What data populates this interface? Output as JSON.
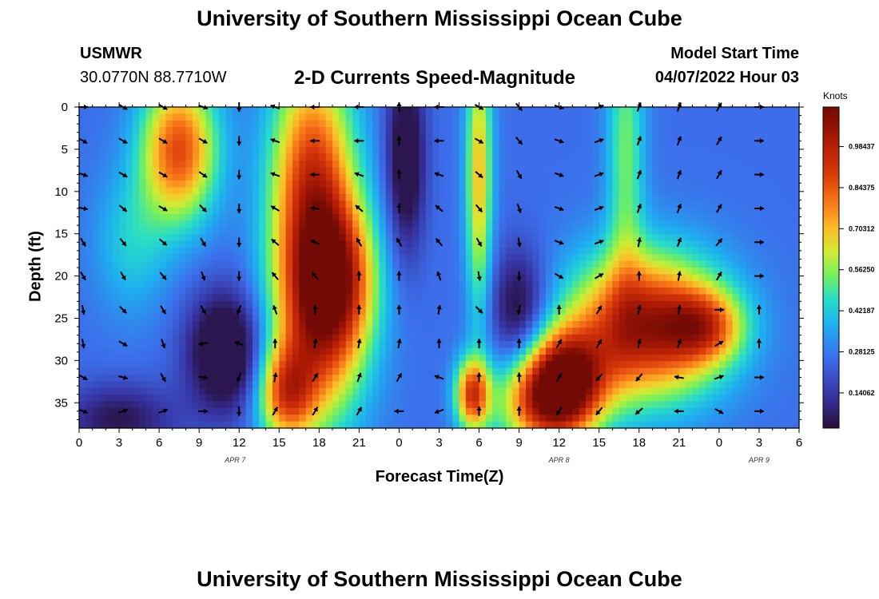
{
  "header": {
    "title": "University of Southern Mississippi Ocean Cube",
    "station": "USMWR",
    "coords": "30.0770N  88.7710W",
    "subtitle": "2-D Currents Speed-Magnitude",
    "model_label": "Model Start Time",
    "model_time": "04/07/2022 Hour 03"
  },
  "footer": {
    "title": "University of Southern Mississippi Ocean Cube"
  },
  "chart_data": {
    "type": "heatmap",
    "title": "2-D Currents Speed-Magnitude",
    "xlabel": "Forecast Time(Z)",
    "ylabel": "Depth (ft)",
    "colorbar_label": "Knots",
    "colorbar_ticks": [
      "0.14062",
      "0.28125",
      "0.42187",
      "0.56250",
      "0.70312",
      "0.84375",
      "0.98437"
    ],
    "colorbar_range": [
      0.02,
      1.12
    ],
    "x_tick_labels": [
      "0",
      "3",
      "6",
      "9",
      "12",
      "15",
      "18",
      "21",
      "0",
      "3",
      "6",
      "9",
      "12",
      "15",
      "18",
      "21",
      "0",
      "3",
      "6"
    ],
    "x_range_hours": [
      0,
      54
    ],
    "date_labels": [
      {
        "text": "APR 7",
        "hour": 11.7
      },
      {
        "text": "APR 8",
        "hour": 36
      },
      {
        "text": "APR 9",
        "hour": 51
      }
    ],
    "y_ticks": [
      0,
      5,
      10,
      15,
      20,
      25,
      30,
      35
    ],
    "y_range": [
      0,
      38
    ],
    "hotspots": [
      {
        "t": 7.5,
        "d": 5,
        "st": 2.0,
        "sd": 6,
        "v": 0.55
      },
      {
        "t": 17.5,
        "d": 8,
        "st": 2.2,
        "sd": 10,
        "v": 0.55
      },
      {
        "t": 18,
        "d": 25,
        "st": 2.5,
        "sd": 9,
        "v": 0.55
      },
      {
        "t": 15.5,
        "d": 34,
        "st": 1.5,
        "sd": 4,
        "v": 0.45
      },
      {
        "t": 19.5,
        "d": 20,
        "st": 2.0,
        "sd": 6,
        "v": 0.35
      },
      {
        "t": 29.5,
        "d": 34,
        "st": 0.9,
        "sd": 3,
        "v": 0.55
      },
      {
        "t": 35,
        "d": 35,
        "st": 2.5,
        "sd": 4,
        "v": 0.55
      },
      {
        "t": 42.5,
        "d": 26,
        "st": 4.0,
        "sd": 6,
        "v": 0.7
      },
      {
        "t": 47,
        "d": 26,
        "st": 2.0,
        "sd": 3,
        "v": 0.35
      },
      {
        "t": 36.5,
        "d": 32,
        "st": 2.0,
        "sd": 4,
        "v": 0.55
      },
      {
        "t": 30,
        "d": 8,
        "st": 0.7,
        "sd": 12,
        "v": 0.4
      },
      {
        "t": 41,
        "d": 5,
        "st": 1.0,
        "sd": 12,
        "v": 0.25
      },
      {
        "t": 4,
        "d": 16,
        "st": 2.0,
        "sd": 6,
        "v": 0.15
      }
    ],
    "lowspots": [
      {
        "t": 11,
        "d": 29,
        "st": 2.0,
        "sd": 5,
        "v": 0.35
      },
      {
        "t": 24.5,
        "d": 6,
        "st": 1.0,
        "sd": 8,
        "v": 0.3
      },
      {
        "t": 33,
        "d": 24,
        "st": 1.5,
        "sd": 5,
        "v": 0.25
      },
      {
        "t": 3,
        "d": 37,
        "st": 3.0,
        "sd": 3,
        "v": 0.2
      }
    ],
    "arrow_times": [
      0.3,
      3.3,
      6.3,
      9.3,
      12.0,
      14.7,
      17.7,
      21.0,
      24.0,
      27.0,
      30.0,
      33.0,
      36.0,
      39.0,
      42.0,
      45.0,
      48.0,
      51.0
    ],
    "arrow_depths": [
      0,
      4,
      8,
      12,
      16,
      20,
      24,
      28,
      32,
      36
    ],
    "arrow_angles_deg": [
      [
        0,
        30,
        20,
        10,
        60,
        60,
        80,
        80,
        30,
        20
      ],
      [
        30,
        30,
        30,
        40,
        50,
        60,
        45,
        30,
        15,
        -20
      ],
      [
        30,
        30,
        30,
        30,
        40,
        50,
        60,
        70,
        60,
        -20
      ],
      [
        20,
        30,
        35,
        45,
        60,
        70,
        60,
        170,
        10,
        0
      ],
      [
        90,
        90,
        90,
        90,
        90,
        90,
        110,
        200,
        110,
        90
      ],
      [
        200,
        200,
        200,
        210,
        220,
        230,
        250,
        270,
        280,
        300
      ],
      [
        180,
        180,
        180,
        190,
        200,
        230,
        270,
        280,
        300,
        300
      ],
      [
        180,
        180,
        200,
        220,
        240,
        270,
        270,
        280,
        290,
        300
      ],
      [
        270,
        270,
        270,
        270,
        240,
        270,
        270,
        280,
        300,
        180
      ],
      [
        180,
        180,
        200,
        220,
        230,
        250,
        280,
        270,
        200,
        160
      ],
      [
        30,
        30,
        40,
        50,
        60,
        80,
        45,
        270,
        270,
        270
      ],
      [
        50,
        50,
        60,
        70,
        80,
        90,
        100,
        270,
        270,
        270
      ],
      [
        20,
        20,
        20,
        20,
        20,
        30,
        270,
        300,
        300,
        120
      ],
      [
        340,
        340,
        340,
        340,
        340,
        330,
        300,
        300,
        130,
        130
      ],
      [
        290,
        290,
        290,
        290,
        280,
        270,
        280,
        280,
        130,
        140
      ],
      [
        290,
        290,
        290,
        290,
        290,
        280,
        280,
        290,
        190,
        180
      ],
      [
        300,
        300,
        300,
        300,
        310,
        300,
        0,
        330,
        340,
        30
      ],
      [
        0,
        0,
        0,
        0,
        0,
        0,
        270,
        270,
        0,
        0
      ]
    ]
  }
}
